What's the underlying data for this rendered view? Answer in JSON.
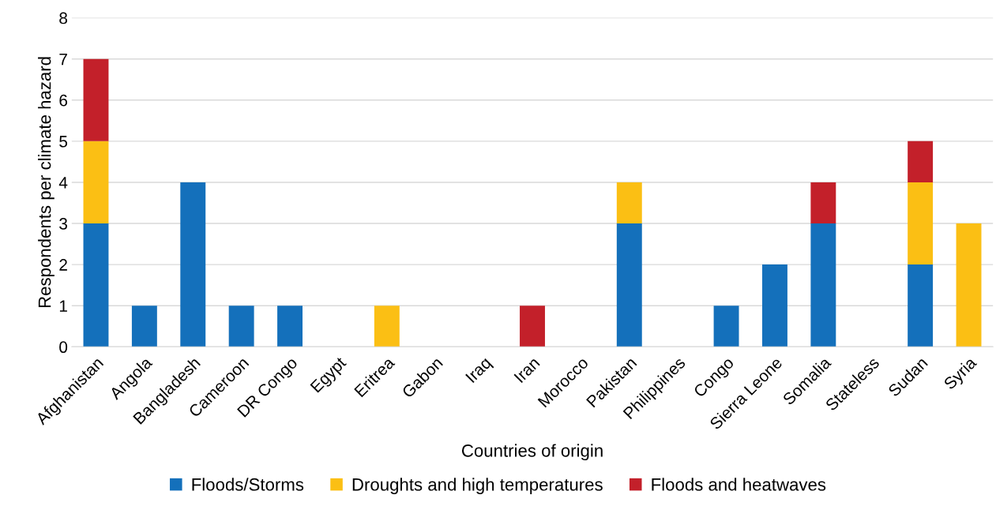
{
  "chart_data": {
    "type": "bar",
    "stacked": true,
    "xlabel": "Countries of origin",
    "ylabel": "Respondents per climate hazard",
    "categories": [
      "Afghanistan",
      "Angola",
      "Bangladesh",
      "Cameroon",
      "DR Congo",
      "Egypt",
      "Eritrea",
      "Gabon",
      "Iraq",
      "Iran",
      "Morocco",
      "Pakistan",
      "Philippines",
      "Congo",
      "Sierra Leone",
      "Somalia",
      "Stateless",
      "Sudan",
      "Syria"
    ],
    "series": [
      {
        "name": "Floods/Storms",
        "color": "#1470bb",
        "values": [
          3,
          1,
          4,
          1,
          1,
          0,
          0,
          0,
          0,
          0,
          0,
          3,
          0,
          1,
          2,
          3,
          0,
          2,
          0
        ]
      },
      {
        "name": "Droughts and high temperatures",
        "color": "#fbbf14",
        "values": [
          2,
          0,
          0,
          0,
          0,
          0,
          1,
          0,
          0,
          0,
          0,
          1,
          0,
          0,
          0,
          0,
          0,
          2,
          3
        ]
      },
      {
        "name": "Floods and heatwaves",
        "color": "#c3202a",
        "values": [
          2,
          0,
          0,
          0,
          0,
          0,
          0,
          0,
          0,
          1,
          0,
          0,
          0,
          0,
          0,
          1,
          0,
          1,
          0
        ]
      }
    ],
    "ylim": [
      0,
      8
    ],
    "yticks": [
      0,
      1,
      2,
      3,
      4,
      5,
      6,
      7,
      8
    ],
    "grid": "y",
    "legend": "bottom"
  }
}
